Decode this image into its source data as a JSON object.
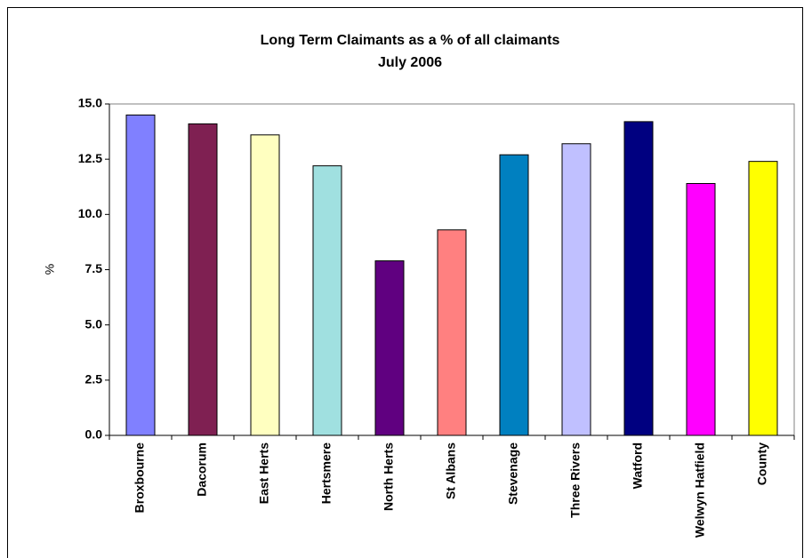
{
  "chart_data": {
    "type": "bar",
    "title": "Long Term Claimants as a % of all claimants",
    "subtitle": "July 2006",
    "y_label": "%",
    "categories": [
      "Broxbourne",
      "Dacorum",
      "East Herts",
      "Hertsmere",
      "North Herts",
      "St Albans",
      "Stevenage",
      "Three Rivers",
      "Watford",
      "Welwyn Hatfield",
      "County"
    ],
    "values": [
      14.5,
      14.1,
      13.6,
      12.2,
      7.9,
      9.3,
      12.7,
      13.2,
      14.2,
      11.4,
      12.4
    ],
    "colors": [
      "#8080ff",
      "#7f2052",
      "#ffffc0",
      "#a0e0e0",
      "#600080",
      "#ff8080",
      "#0080c0",
      "#c0c0ff",
      "#000080",
      "#ff00ff",
      "#ffff00"
    ],
    "ylim": [
      0,
      15
    ],
    "yticks": [
      {
        "value": 0,
        "label": "0.0"
      },
      {
        "value": 2.5,
        "label": "2.5"
      },
      {
        "value": 5,
        "label": "5.0"
      },
      {
        "value": 7.5,
        "label": "7.5"
      },
      {
        "value": 10,
        "label": "10.0"
      },
      {
        "value": 12.5,
        "label": "12.5"
      },
      {
        "value": 15,
        "label": "15.0"
      }
    ],
    "grid": false
  }
}
